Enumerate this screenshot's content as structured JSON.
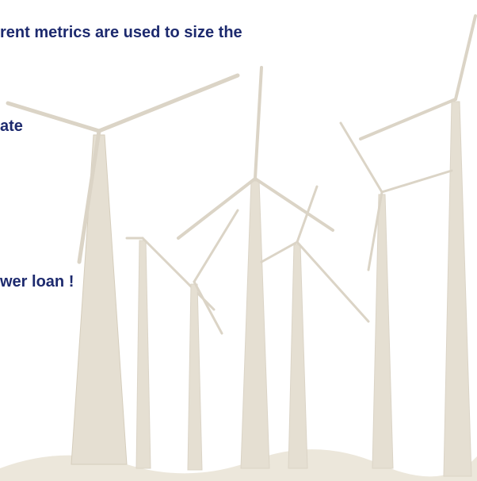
{
  "text_lines": [
    "rent metrics are used to size the",
    "ate",
    "wer loan !"
  ]
}
